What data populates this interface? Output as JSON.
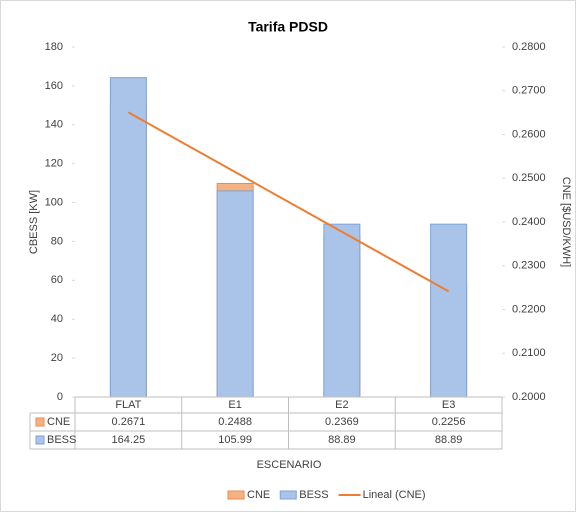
{
  "chart_data": {
    "type": "bar",
    "title": "Tarifa PDSD",
    "y_label": "CBESS [KW]",
    "y2_label": "CNE [$USD/KWH]",
    "x_label": "ESCENARIO",
    "categories": [
      "FLAT",
      "E1",
      "E2",
      "E3"
    ],
    "series": [
      {
        "name": "CNE",
        "color": "#f4b183",
        "values": [
          0.2671,
          0.2488,
          0.2369,
          0.2256
        ],
        "axis": "y2"
      },
      {
        "name": "BESS",
        "color": "#a9c4e8",
        "values": [
          164.25,
          105.99,
          88.89,
          88.89
        ]
      }
    ],
    "trendline": {
      "name": "Lineal (CNE)",
      "color": "#ed7d31"
    },
    "ylim": [
      0,
      180
    ],
    "yticks": [
      0,
      20,
      40,
      60,
      80,
      100,
      120,
      140,
      160,
      180
    ],
    "y2lim": [
      0.2,
      0.28
    ],
    "y2ticks": [
      {
        "value": 0.2,
        "label": "0.2000"
      },
      {
        "value": 0.21,
        "label": "0.2100"
      },
      {
        "value": 0.22,
        "label": "0.2200"
      },
      {
        "value": 0.23,
        "label": "0.2300"
      },
      {
        "value": 0.24,
        "label": "0.2400"
      },
      {
        "value": 0.25,
        "label": "0.2500"
      },
      {
        "value": 0.26,
        "label": "0.2600"
      },
      {
        "value": 0.27,
        "label": "0.2700"
      },
      {
        "value": 0.28,
        "label": "0.2800"
      }
    ]
  }
}
